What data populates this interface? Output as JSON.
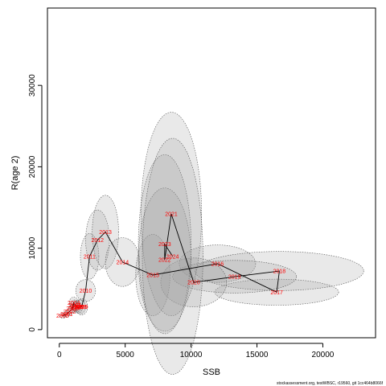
{
  "chart_data": {
    "type": "line",
    "xlabel": "SSB",
    "ylabel": "R(age 2)",
    "xlim": [
      -900,
      24000
    ],
    "ylim": [
      -1000,
      39500
    ],
    "x_ticks": [
      0,
      5000,
      10000,
      15000,
      20000
    ],
    "y_ticks": [
      0,
      10000,
      20000,
      30000
    ],
    "x_tick_labels": [
      "0",
      "5000",
      "10000",
      "15000",
      "20000"
    ],
    "y_tick_labels": [
      "0",
      "10000",
      "20000",
      "30000"
    ],
    "grid": false,
    "legend": "none",
    "line_color": "#000000",
    "label_color": "#ff0000",
    "ellipse_fill": "#999999",
    "ellipse_stroke": "#555555",
    "footer": "stockassessment.org, testWBSC, r19560, git 1cc464b8066f",
    "points": [
      {
        "year": "2000",
        "x": 250,
        "y": 1700,
        "sx": 250,
        "sy": 300
      },
      {
        "year": "2001",
        "x": 550,
        "y": 1900,
        "sx": 250,
        "sy": 400
      },
      {
        "year": "2002",
        "x": 780,
        "y": 2200,
        "sx": 250,
        "sy": 450
      },
      {
        "year": "2003",
        "x": 1000,
        "y": 2600,
        "sx": 300,
        "sy": 550
      },
      {
        "year": "2004",
        "x": 1100,
        "y": 3300,
        "sx": 350,
        "sy": 700
      },
      {
        "year": "2005",
        "x": 1200,
        "y": 3000,
        "sx": 350,
        "sy": 650
      },
      {
        "year": "2006",
        "x": 1300,
        "y": 2800,
        "sx": 350,
        "sy": 650
      },
      {
        "year": "2007",
        "x": 1400,
        "y": 2700,
        "sx": 350,
        "sy": 700
      },
      {
        "year": "2008",
        "x": 1600,
        "y": 2800,
        "sx": 400,
        "sy": 850
      },
      {
        "year": "2009",
        "x": 1700,
        "y": 2800,
        "sx": 450,
        "sy": 1000
      },
      {
        "year": "2010",
        "x": 2000,
        "y": 4800,
        "sx": 750,
        "sy": 1350
      },
      {
        "year": "2011",
        "x": 2300,
        "y": 9000,
        "sx": 700,
        "sy": 2800
      },
      {
        "year": "2012",
        "x": 2900,
        "y": 11000,
        "sx": 900,
        "sy": 3700
      },
      {
        "year": "2013",
        "x": 3500,
        "y": 12000,
        "sx": 1000,
        "sy": 4500
      },
      {
        "year": "2014",
        "x": 4800,
        "y": 8300,
        "sx": 1300,
        "sy": 3000
      },
      {
        "year": "2015",
        "x": 7100,
        "y": 6700,
        "sx": 1300,
        "sy": 5000
      },
      {
        "year": "2016",
        "x": 12000,
        "y": 8100,
        "sx": 2900,
        "sy": 2300
      },
      {
        "year": "2017",
        "x": 16500,
        "y": 4600,
        "sx": 4700,
        "sy": 1600
      },
      {
        "year": "2018",
        "x": 16700,
        "y": 7200,
        "sx": 6400,
        "sy": 2400
      },
      {
        "year": "2019",
        "x": 13300,
        "y": 6500,
        "sx": 4700,
        "sy": 2000
      },
      {
        "year": "2020",
        "x": 10200,
        "y": 5800,
        "sx": 2500,
        "sy": 3000
      },
      {
        "year": "2021",
        "x": 8500,
        "y": 14200,
        "sx": 2300,
        "sy": 12500
      },
      {
        "year": "2022",
        "x": 8000,
        "y": 8600,
        "sx": 2000,
        "sy": 8800
      },
      {
        "year": "2023",
        "x": 8000,
        "y": 10500,
        "sx": 2000,
        "sy": 11000
      },
      {
        "year": "2024",
        "x": 8600,
        "y": 9000,
        "sx": 2300,
        "sy": 14500
      }
    ]
  }
}
